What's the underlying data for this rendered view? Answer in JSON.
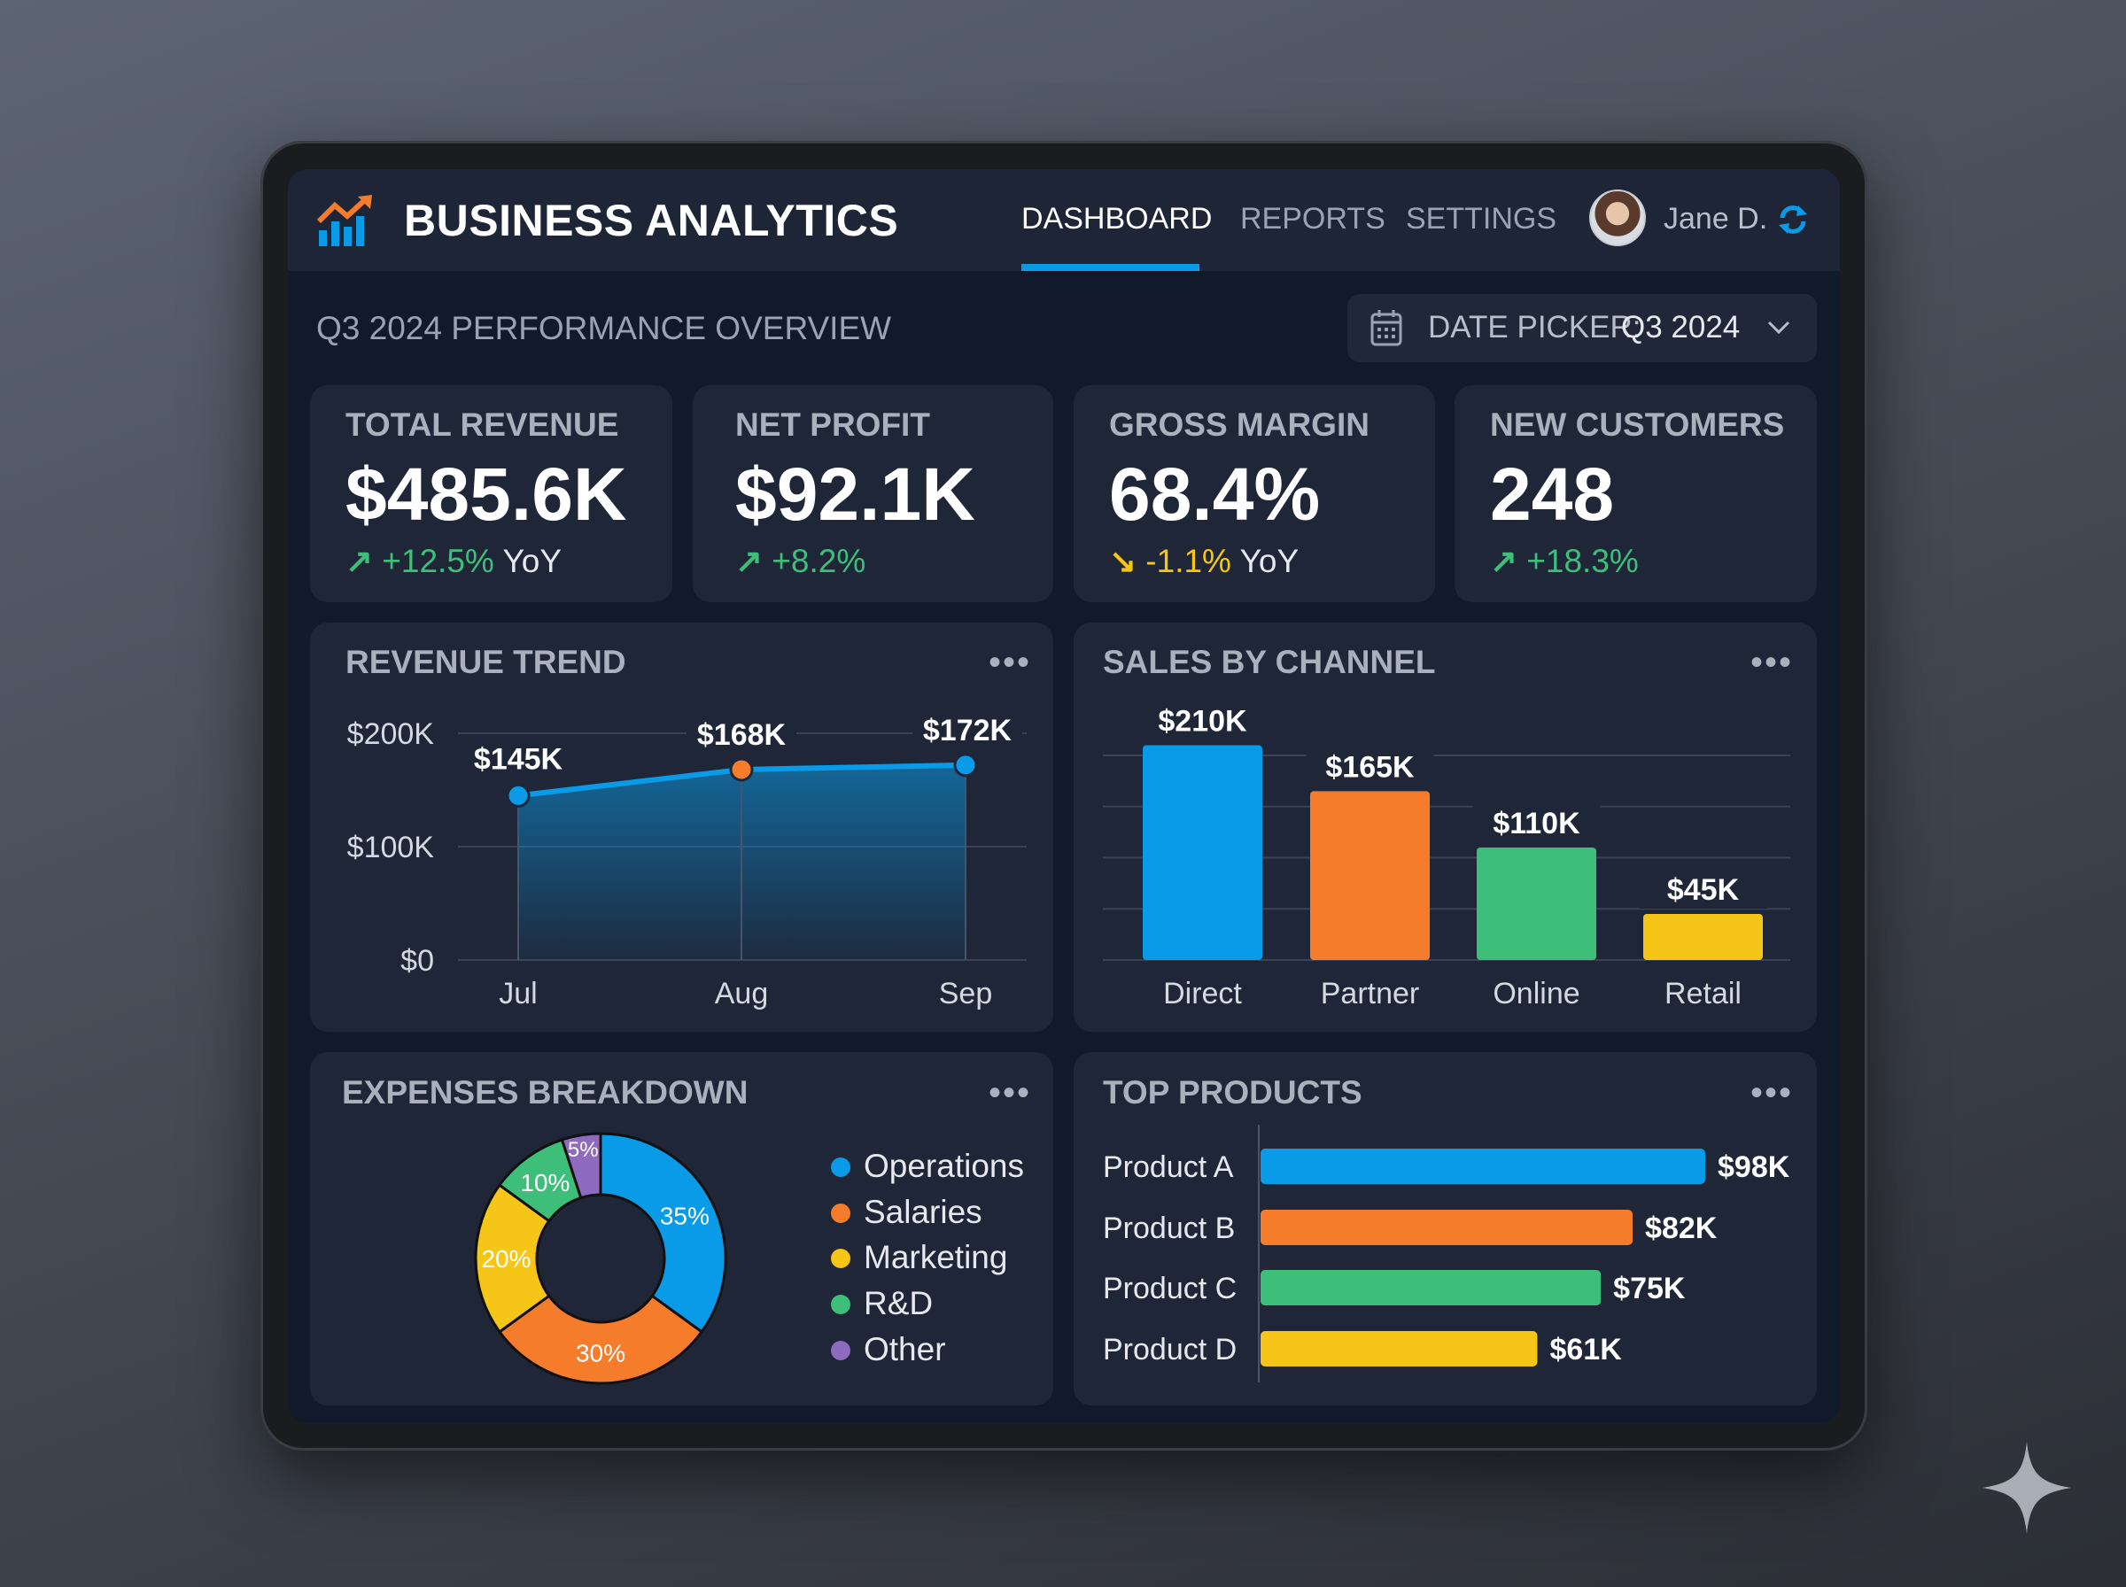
{
  "app": {
    "title": "BUSINESS ANALYTICS",
    "nav": [
      {
        "label": "DASHBOARD",
        "active": true
      },
      {
        "label": "REPORTS"
      },
      {
        "label": "SETTINGS"
      }
    ],
    "user": "Jane D.",
    "logo_icon": "chart-growth-icon",
    "refresh_icon": "refresh-icon"
  },
  "overview": {
    "title": "Q3 2024 PERFORMANCE OVERVIEW",
    "date_picker": {
      "label": "DATE PICKER:",
      "value": "Q3 2024",
      "icon": "calendar-icon"
    }
  },
  "kpis": [
    {
      "label": "TOTAL REVENUE",
      "value": "$485.6K",
      "change": "+12.5%",
      "suffix": "YoY",
      "trend": "up"
    },
    {
      "label": "NET PROFIT",
      "value": "$92.1K",
      "change": "+8.2%",
      "suffix": "",
      "trend": "up"
    },
    {
      "label": "GROSS MARGIN",
      "value": "68.4%",
      "change": "-1.1%",
      "suffix": "YoY",
      "trend": "down"
    },
    {
      "label": "NEW CUSTOMERS",
      "value": "248",
      "change": "+18.3%",
      "suffix": "",
      "trend": "up"
    }
  ],
  "colors": {
    "blue": "#0a9be8",
    "orange": "#f57c2a",
    "green": "#3dbf7a",
    "yellow": "#f5c518",
    "purple": "#8e6bbf",
    "up": "#3dbf7a",
    "down": "#f5c518"
  },
  "chart_data": [
    {
      "type": "area",
      "title": "REVENUE TREND",
      "categories": [
        "Jul",
        "Aug",
        "Sep"
      ],
      "values": [
        145,
        168,
        172
      ],
      "labels": [
        "$145K",
        "$168K",
        "$172K"
      ],
      "yticks": [
        "$0",
        "$100K",
        "$200K"
      ],
      "ylim": [
        0,
        200
      ],
      "unit": "$K",
      "grid": true
    },
    {
      "type": "bar",
      "title": "SALES BY CHANNEL",
      "categories": [
        "Direct",
        "Partner",
        "Online",
        "Retail"
      ],
      "values": [
        210,
        165,
        110,
        45
      ],
      "labels": [
        "$210K",
        "$165K",
        "$110K",
        "$45K"
      ],
      "ylim": [
        0,
        200
      ],
      "grid": true,
      "colors": [
        "#0a9be8",
        "#f57c2a",
        "#3dbf7a",
        "#f5c518"
      ]
    },
    {
      "type": "pie",
      "title": "EXPENSES BREAKDOWN",
      "categories": [
        "Operations",
        "Salaries",
        "Marketing",
        "R&D",
        "Other"
      ],
      "values": [
        35,
        30,
        20,
        10,
        5
      ],
      "labels": [
        "35%",
        "30%",
        "20%",
        "10%",
        "5%"
      ],
      "colors": [
        "#0a9be8",
        "#f57c2a",
        "#f5c518",
        "#3dbf7a",
        "#8e6bbf"
      ],
      "legend": "right",
      "donut": true
    },
    {
      "type": "bar",
      "orientation": "horizontal",
      "title": "TOP PRODUCTS",
      "categories": [
        "Product A",
        "Product B",
        "Product C",
        "Product D"
      ],
      "values": [
        98,
        82,
        75,
        61
      ],
      "labels": [
        "$98K",
        "$82K",
        "$75K",
        "$61K"
      ],
      "colors": [
        "#0a9be8",
        "#f57c2a",
        "#3dbf7a",
        "#f5c518"
      ]
    }
  ],
  "more_label": "•••"
}
